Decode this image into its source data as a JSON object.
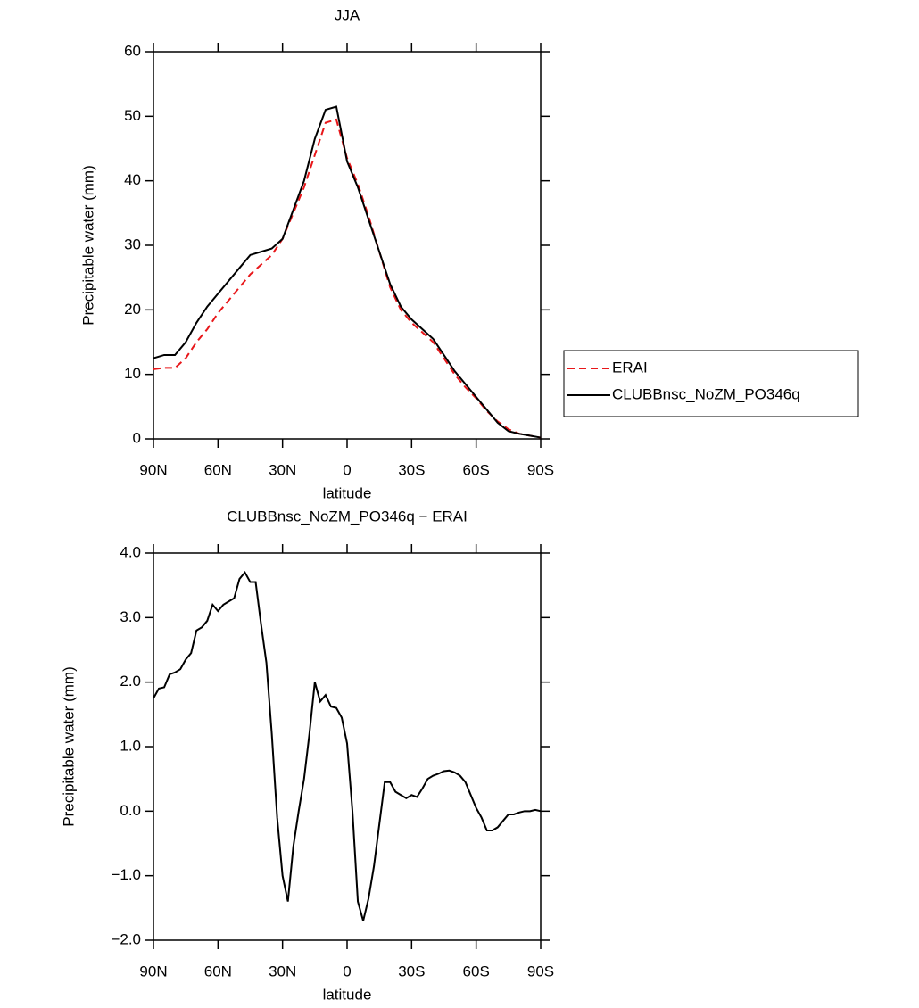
{
  "chart_data": [
    {
      "type": "line",
      "title": "JJA",
      "xlabel": "latitude",
      "ylabel": "Precipitable water (mm)",
      "xlim": [
        90,
        -90
      ],
      "xticks": [
        {
          "value": 90,
          "label": "90N"
        },
        {
          "value": 60,
          "label": "60N"
        },
        {
          "value": 30,
          "label": "30N"
        },
        0,
        {
          "value": -30,
          "label": "30S"
        },
        {
          "value": -60,
          "label": "60S"
        },
        {
          "value": -90,
          "label": "90S"
        }
      ],
      "ylim": [
        0,
        60
      ],
      "yticks": [
        0,
        10,
        20,
        30,
        40,
        50,
        60
      ],
      "legend": "right",
      "x": [
        90,
        85,
        80,
        75,
        70,
        65,
        60,
        55,
        50,
        45,
        40,
        35,
        30,
        25,
        20,
        15,
        10,
        5,
        0,
        -5,
        -10,
        -15,
        -20,
        -25,
        -30,
        -35,
        -40,
        -45,
        -50,
        -55,
        -60,
        -65,
        -70,
        -75,
        -80,
        -85,
        -90
      ],
      "series": [
        {
          "name": "ERAI",
          "color": "#e8171a",
          "dashed": true,
          "values": [
            10.8,
            11,
            11,
            12.5,
            15,
            17,
            19.5,
            21.5,
            23.5,
            25.5,
            27,
            28.5,
            31,
            35,
            39,
            44,
            49,
            49.5,
            43.5,
            39.5,
            34.5,
            29,
            23.5,
            20,
            18,
            16.5,
            15,
            12.5,
            10,
            8,
            6.3,
            4.3,
            2.7,
            1.5,
            0.8,
            0.5,
            0.2
          ]
        },
        {
          "name": "CLUBBnsc_NoZM_PO346q",
          "color": "#000000",
          "dashed": false,
          "values": [
            12.5,
            13,
            13,
            15,
            18,
            20.5,
            22.5,
            24.5,
            26.5,
            28.5,
            29,
            29.5,
            31,
            35.5,
            40,
            46.5,
            51,
            51.5,
            43,
            39,
            34,
            29,
            24,
            20.5,
            18.5,
            17,
            15.5,
            13,
            10.5,
            8.5,
            6.5,
            4.5,
            2.5,
            1.2,
            0.8,
            0.5,
            0.2
          ]
        }
      ]
    },
    {
      "type": "line",
      "title": "CLUBBnsc_NoZM_PO346q − ERAI",
      "xlabel": "latitude",
      "ylabel": "Precipitable water (mm)",
      "xlim": [
        90,
        -90
      ],
      "xticks": [
        {
          "value": 90,
          "label": "90N"
        },
        {
          "value": 60,
          "label": "60N"
        },
        {
          "value": 30,
          "label": "30N"
        },
        0,
        {
          "value": -30,
          "label": "30S"
        },
        {
          "value": -60,
          "label": "60S"
        },
        {
          "value": -90,
          "label": "90S"
        }
      ],
      "ylim": [
        -2,
        4
      ],
      "yticks": [
        {
          "value": -2,
          "label": "−2.0"
        },
        {
          "value": -1,
          "label": "−1.0"
        },
        {
          "value": 0,
          "label": "0.0"
        },
        {
          "value": 1,
          "label": "1.0"
        },
        {
          "value": 2,
          "label": "2.0"
        },
        {
          "value": 3,
          "label": "3.0"
        },
        {
          "value": 4,
          "label": "4.0"
        }
      ],
      "x": [
        90,
        87.5,
        85,
        82.5,
        80,
        77.5,
        75,
        72.5,
        70,
        67.5,
        65,
        62.5,
        60,
        57.5,
        55,
        52.5,
        50,
        47.5,
        45,
        42.5,
        40,
        37.5,
        35,
        32.5,
        30,
        27.5,
        25,
        22.5,
        20,
        17.5,
        15,
        12.5,
        10,
        7.5,
        5,
        2.5,
        0,
        -2.5,
        -5,
        -7.5,
        -10,
        -12.5,
        -15,
        -17.5,
        -20,
        -22.5,
        -25,
        -27.5,
        -30,
        -32.5,
        -35,
        -37.5,
        -40,
        -42.5,
        -45,
        -47.5,
        -50,
        -52.5,
        -55,
        -57.5,
        -60,
        -62.5,
        -65,
        -67.5,
        -70,
        -72.5,
        -75,
        -77.5,
        -80,
        -82.5,
        -85,
        -87.5,
        -90
      ],
      "series": [
        {
          "color": "#000000",
          "dashed": false,
          "values": [
            1.75,
            1.9,
            1.92,
            2.12,
            2.15,
            2.2,
            2.35,
            2.45,
            2.8,
            2.85,
            2.95,
            3.2,
            3.1,
            3.2,
            3.25,
            3.3,
            3.6,
            3.7,
            3.55,
            3.55,
            2.9,
            2.3,
            1.2,
            -0.1,
            -1.0,
            -1.4,
            -0.55,
            0.0,
            0.5,
            1.2,
            2.0,
            1.7,
            1.8,
            1.62,
            1.6,
            1.45,
            1.05,
            0.0,
            -1.4,
            -1.7,
            -1.35,
            -0.85,
            -0.2,
            0.45,
            0.45,
            0.3,
            0.25,
            0.2,
            0.25,
            0.22,
            0.35,
            0.5,
            0.55,
            0.58,
            0.62,
            0.63,
            0.6,
            0.55,
            0.45,
            0.25,
            0.05,
            -0.1,
            -0.3,
            -0.3,
            -0.25,
            -0.15,
            -0.05,
            -0.05,
            -0.02,
            0,
            0,
            0.02,
            0
          ]
        }
      ]
    }
  ]
}
